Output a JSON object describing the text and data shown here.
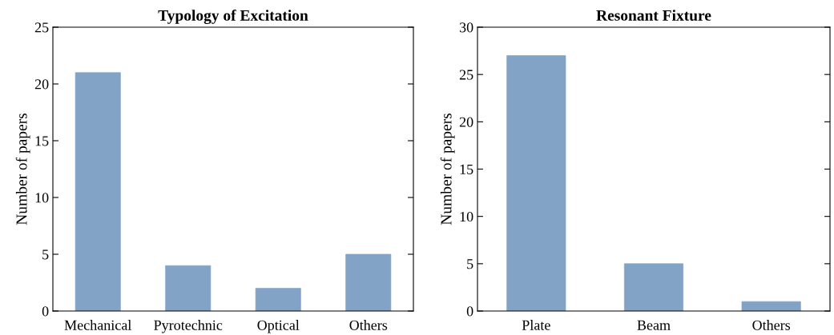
{
  "chart_data": [
    {
      "type": "bar",
      "title": "Typology of Excitation",
      "ylabel": "Number of papers",
      "categories": [
        "Mechanical",
        "Pyrotechnic",
        "Optical",
        "Others"
      ],
      "values": [
        21,
        4,
        2,
        5
      ],
      "color": "#82a3c6",
      "ylim": [
        0,
        25
      ],
      "yticks": [
        0,
        5,
        10,
        15,
        20,
        25
      ],
      "grid": false
    },
    {
      "type": "bar",
      "title": "Resonant Fixture",
      "ylabel": "Number of papers",
      "categories": [
        "Plate",
        "Beam",
        "Others"
      ],
      "values": [
        27,
        5,
        1
      ],
      "color": "#82a3c6",
      "ylim": [
        0,
        30
      ],
      "yticks": [
        0,
        5,
        10,
        15,
        20,
        25,
        30
      ],
      "grid": false
    }
  ]
}
